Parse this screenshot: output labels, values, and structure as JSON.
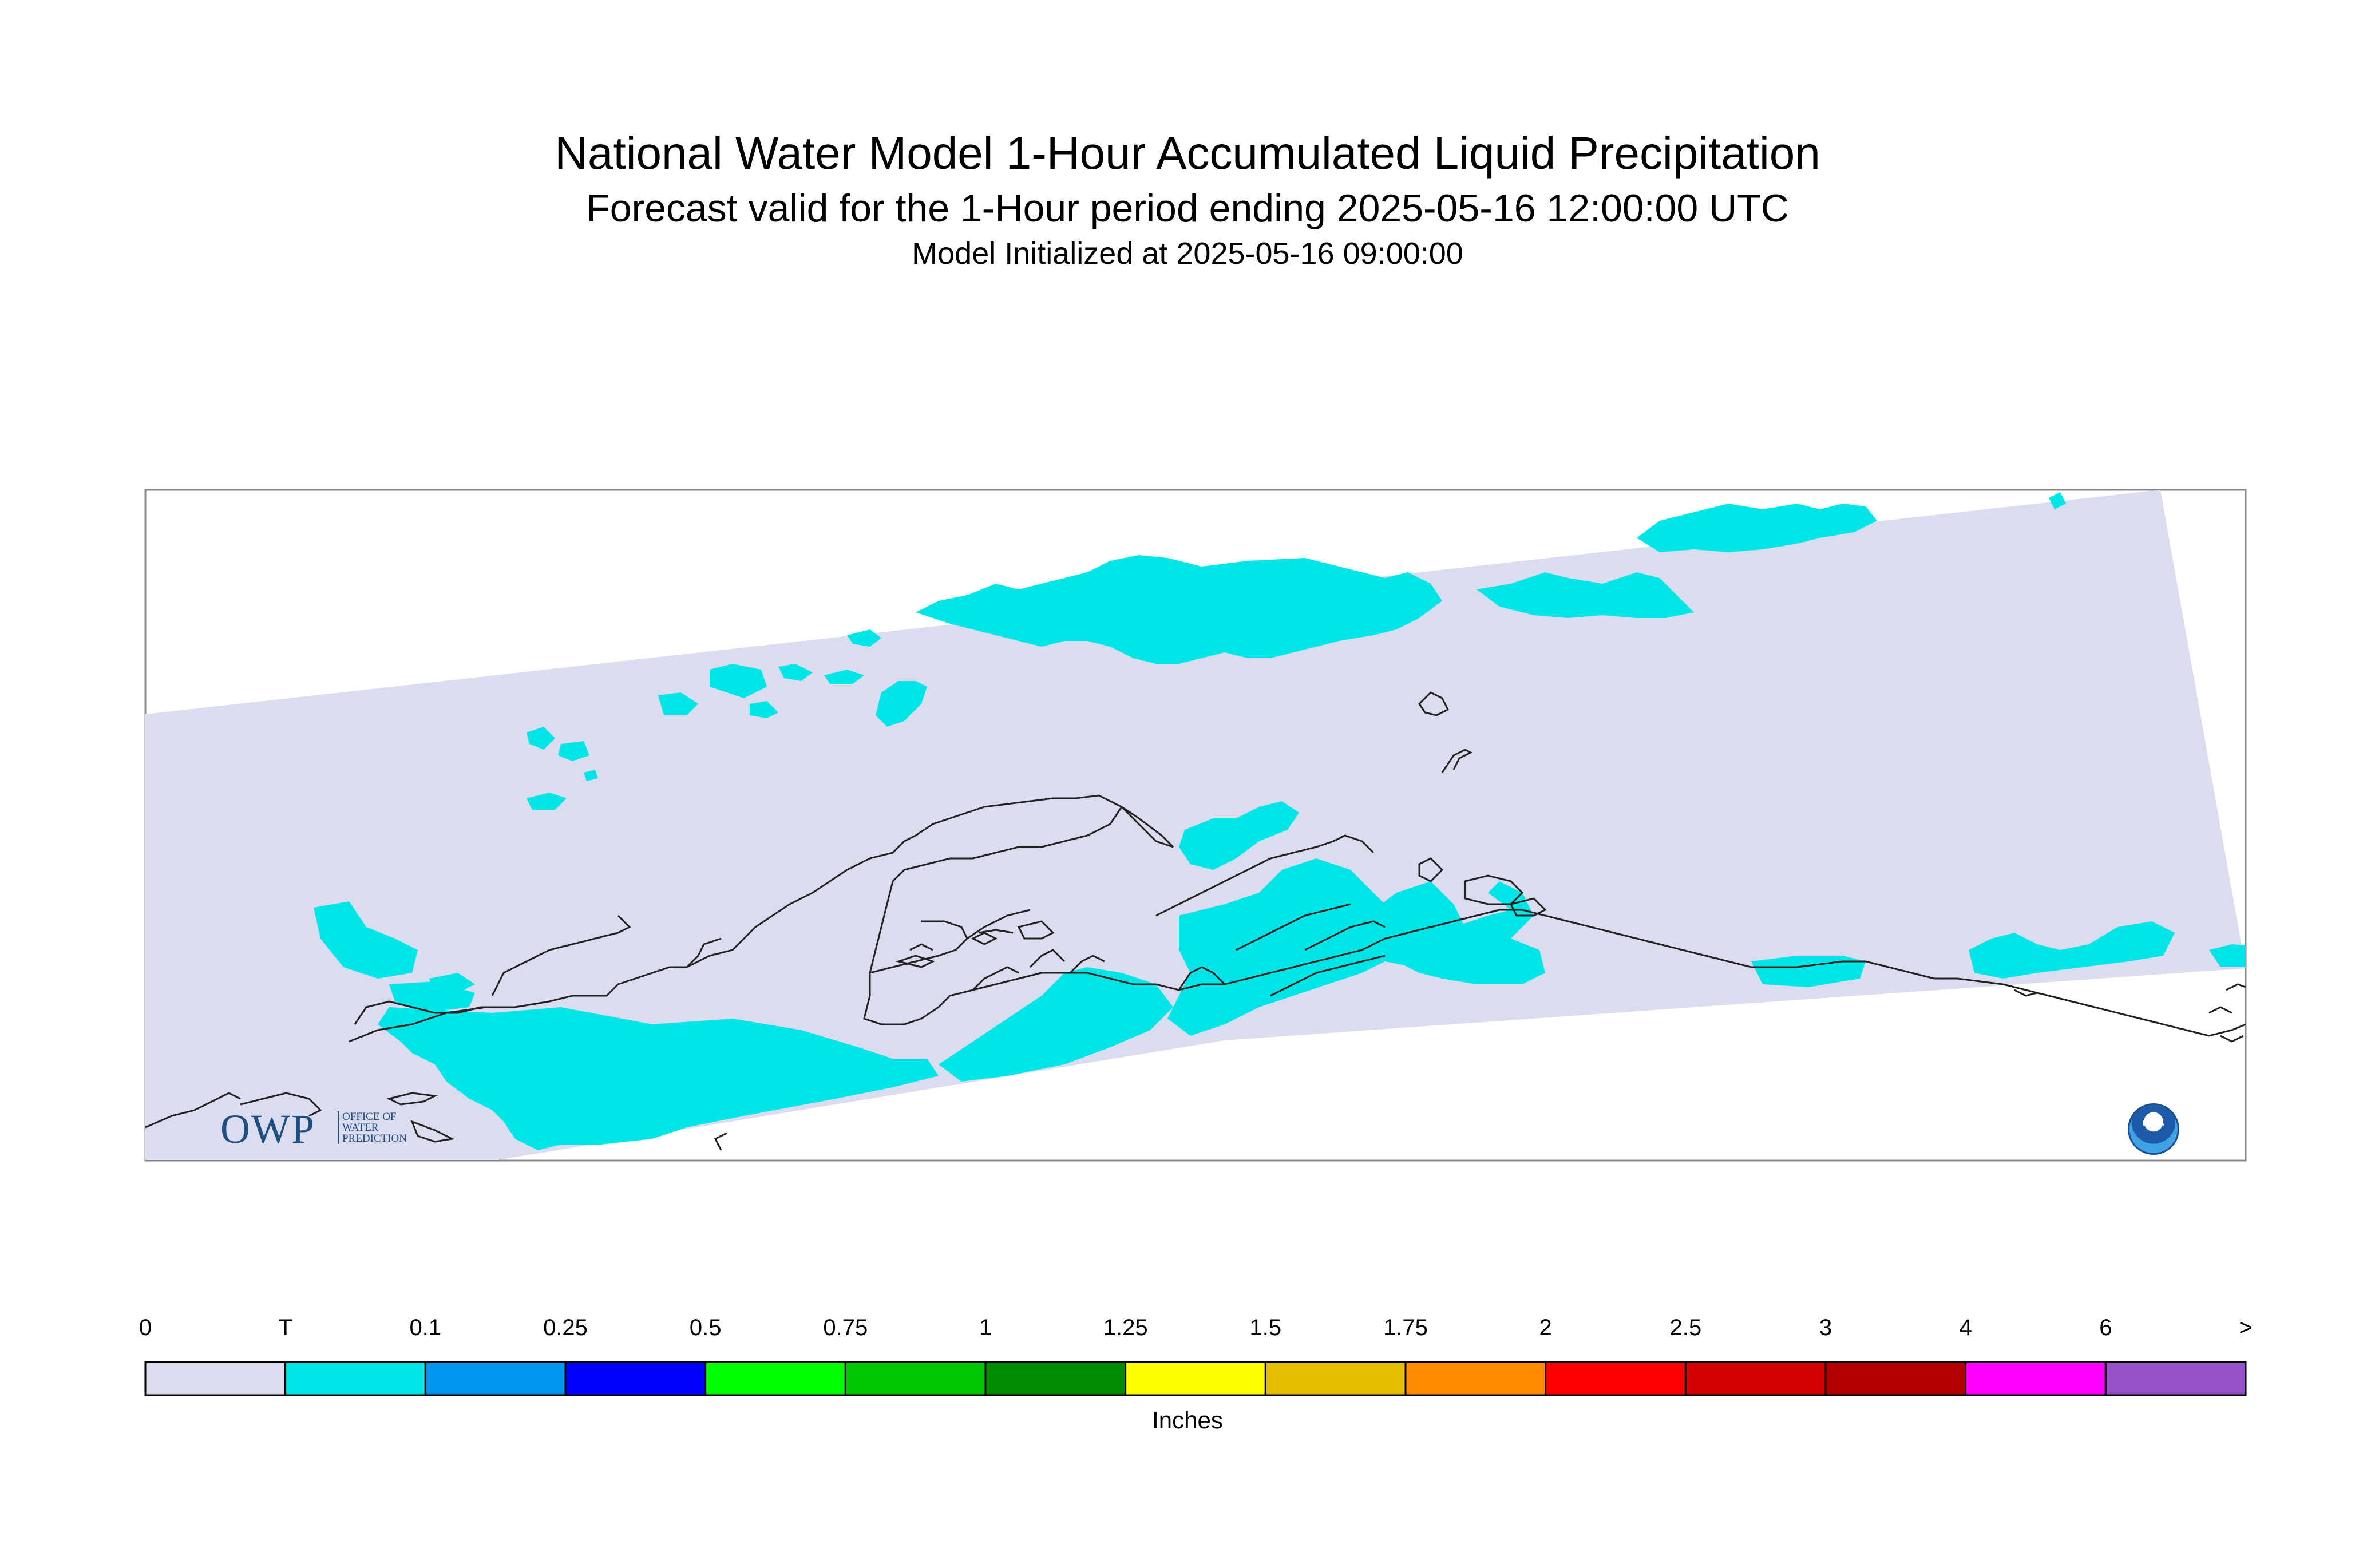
{
  "title": "National Water Model 1-Hour Accumulated Liquid Precipitation",
  "subtitle": "Forecast valid for the 1-Hour period ending 2025-05-16 12:00:00 UTC",
  "init_line": "Model Initialized at 2025-05-16 09:00:00",
  "legend": {
    "units": "Inches",
    "labels": [
      "0",
      "T",
      "0.1",
      "0.25",
      "0.5",
      "0.75",
      "1",
      "1.25",
      "1.5",
      "1.75",
      "2",
      "2.5",
      "3",
      "4",
      "6",
      ">"
    ],
    "colors": [
      "#dcdcf0",
      "#00e6e6",
      "#0096f0",
      "#0000ff",
      "#00ff00",
      "#00c800",
      "#008c00",
      "#ffff00",
      "#e6be00",
      "#ff8c00",
      "#ff0000",
      "#d20000",
      "#b40000",
      "#ff00ff",
      "#9650c8"
    ]
  },
  "map": {
    "domain_color": "#dcdcf0",
    "precip_color": "#00e6e6",
    "coast_color": "#222222"
  },
  "logos": {
    "owp_main": "OWP",
    "owp_lines": [
      "OFFICE OF",
      "WATER",
      "PREDICTION"
    ],
    "noaa": "NOAA"
  }
}
